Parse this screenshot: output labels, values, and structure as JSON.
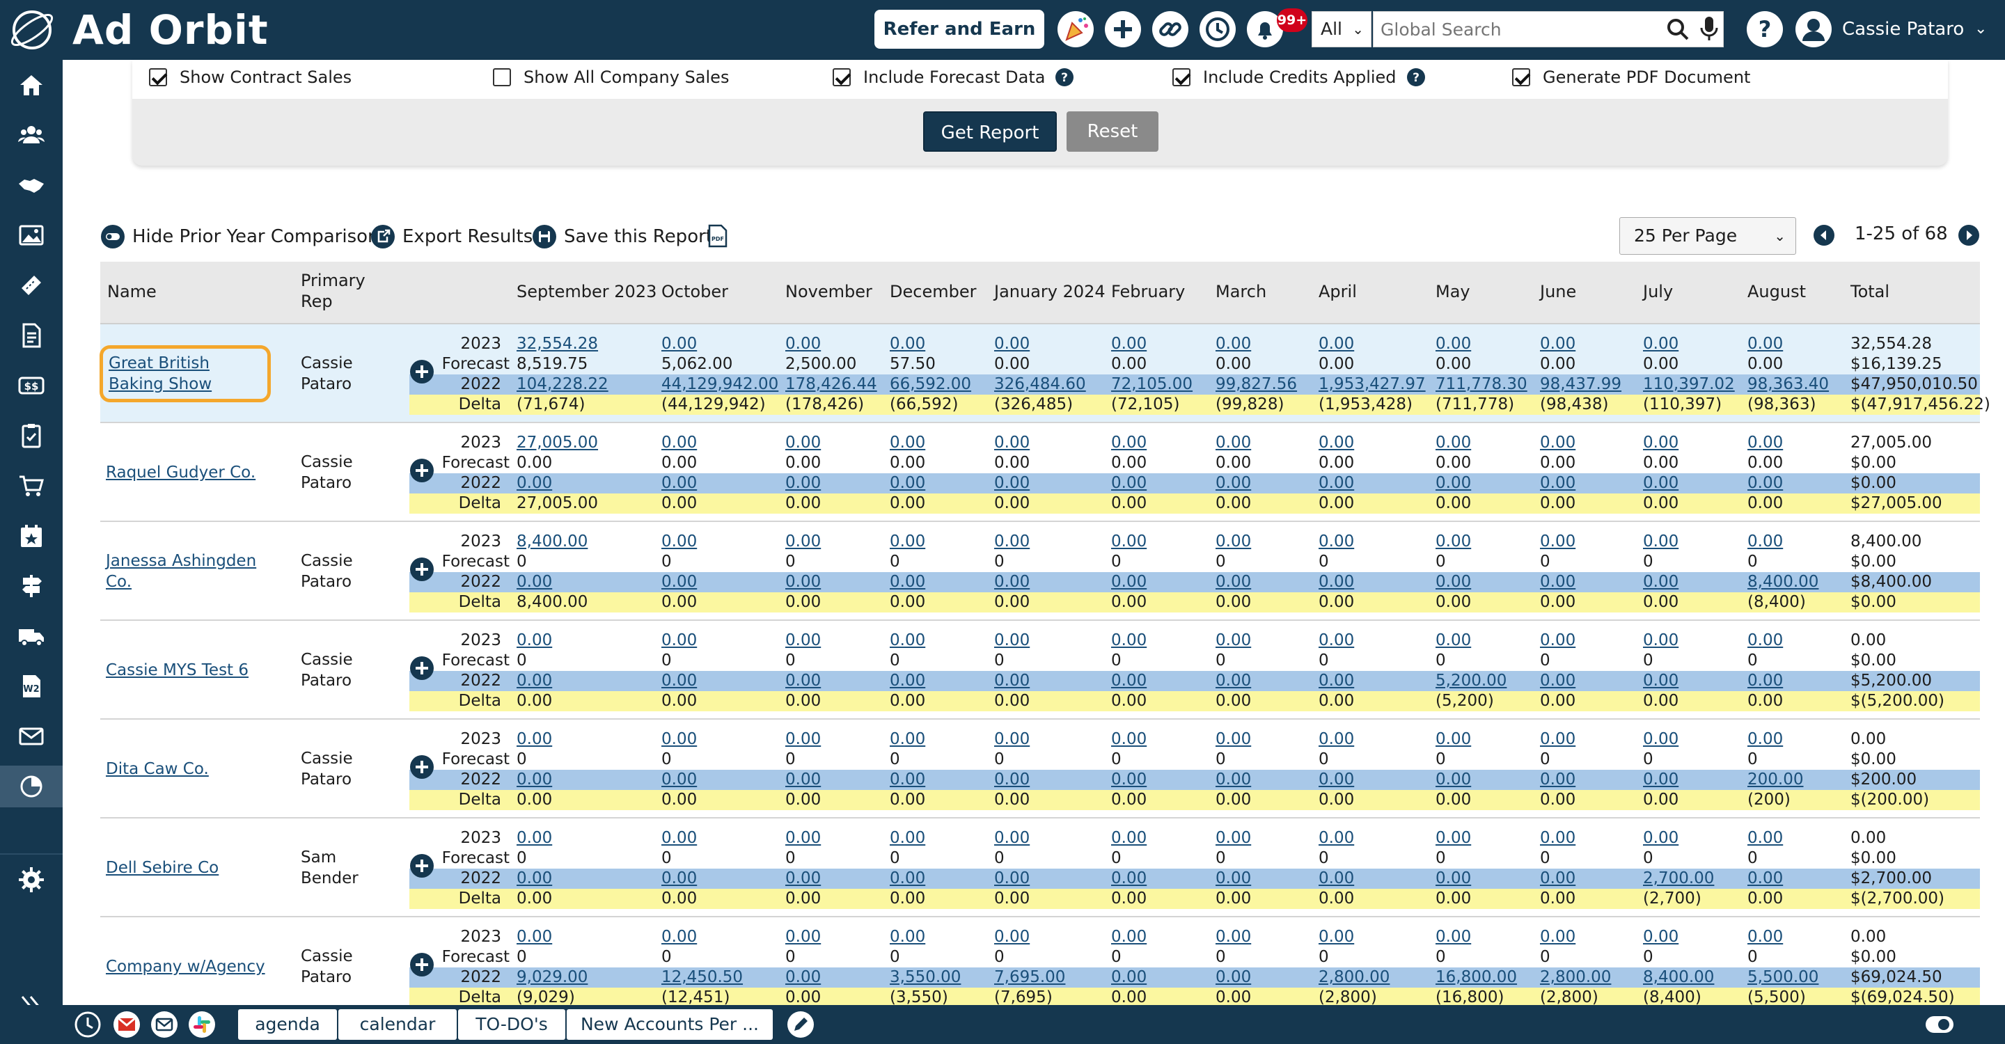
{
  "app": {
    "brand": "Ad Orbit",
    "refer_label": "Refer and Earn",
    "notif_count": "99+",
    "scope": "All",
    "search_placeholder": "Global Search",
    "user_name": "Cassie Pataro"
  },
  "options": {
    "items": [
      {
        "label": "Show Contract Sales",
        "checked": true,
        "help": false
      },
      {
        "label": "Show All Company Sales",
        "checked": false,
        "help": false
      },
      {
        "label": "Include Forecast Data",
        "checked": true,
        "help": true
      },
      {
        "label": "Include Credits Applied",
        "checked": true,
        "help": true
      },
      {
        "label": "Generate PDF Document",
        "checked": true,
        "help": false
      }
    ],
    "get_report": "Get Report",
    "reset": "Reset"
  },
  "actions": {
    "hide_prior": "Hide Prior Year Comparison",
    "export": "Export Results",
    "save": "Save this Report",
    "per_page": "25 Per Page",
    "page_info": "1-25 of 68"
  },
  "table": {
    "headers": {
      "name": "Name",
      "rep_line1": "Primary",
      "rep_line2": "Rep",
      "months": [
        "September 2023",
        "October",
        "November",
        "December",
        "January 2024",
        "February",
        "March",
        "April",
        "May",
        "June",
        "July",
        "August"
      ],
      "total": "Total"
    },
    "row_labels": {
      "year_current": "2023",
      "forecast": "Forecast",
      "year_prior": "2022",
      "delta": "Delta"
    },
    "rows": [
      {
        "name": "Great British Baking Show",
        "rep": "Cassie Pataro",
        "selected": true,
        "r2023": [
          "32,554.28",
          "0.00",
          "0.00",
          "0.00",
          "0.00",
          "0.00",
          "0.00",
          "0.00",
          "0.00",
          "0.00",
          "0.00",
          "0.00"
        ],
        "forecast": [
          "8,519.75",
          "5,062.00",
          "2,500.00",
          "57.50",
          "0.00",
          "0.00",
          "0.00",
          "0.00",
          "0.00",
          "0.00",
          "0.00",
          "0.00"
        ],
        "r2022": [
          "104,228.22",
          "44,129,942.00",
          "178,426.44",
          "66,592.00",
          "326,484.60",
          "72,105.00",
          "99,827.56",
          "1,953,427.97",
          "711,778.30",
          "98,437.99",
          "110,397.02",
          "98,363.40"
        ],
        "delta": [
          "(71,674)",
          "(44,129,942)",
          "(178,426)",
          "(66,592)",
          "(326,485)",
          "(72,105)",
          "(99,828)",
          "(1,953,428)",
          "(711,778)",
          "(98,438)",
          "(110,397)",
          "(98,363)"
        ],
        "totals": [
          "32,554.28",
          "$16,139.25",
          "$47,950,010.50",
          "$(47,917,456.22)"
        ]
      },
      {
        "name": "Raquel Gudyer Co.",
        "rep": "Cassie Pataro",
        "selected": false,
        "r2023": [
          "27,005.00",
          "0.00",
          "0.00",
          "0.00",
          "0.00",
          "0.00",
          "0.00",
          "0.00",
          "0.00",
          "0.00",
          "0.00",
          "0.00"
        ],
        "forecast": [
          "0.00",
          "0.00",
          "0.00",
          "0.00",
          "0.00",
          "0.00",
          "0.00",
          "0.00",
          "0.00",
          "0.00",
          "0.00",
          "0.00"
        ],
        "r2022": [
          "0.00",
          "0.00",
          "0.00",
          "0.00",
          "0.00",
          "0.00",
          "0.00",
          "0.00",
          "0.00",
          "0.00",
          "0.00",
          "0.00"
        ],
        "delta": [
          "27,005.00",
          "0.00",
          "0.00",
          "0.00",
          "0.00",
          "0.00",
          "0.00",
          "0.00",
          "0.00",
          "0.00",
          "0.00",
          "0.00"
        ],
        "totals": [
          "27,005.00",
          "$0.00",
          "$0.00",
          "$27,005.00"
        ]
      },
      {
        "name": "Janessa Ashingden Co.",
        "rep": "Cassie Pataro",
        "selected": false,
        "r2023": [
          "8,400.00",
          "0.00",
          "0.00",
          "0.00",
          "0.00",
          "0.00",
          "0.00",
          "0.00",
          "0.00",
          "0.00",
          "0.00",
          "0.00"
        ],
        "forecast": [
          "0",
          "0",
          "0",
          "0",
          "0",
          "0",
          "0",
          "0",
          "0",
          "0",
          "0",
          "0"
        ],
        "r2022": [
          "0.00",
          "0.00",
          "0.00",
          "0.00",
          "0.00",
          "0.00",
          "0.00",
          "0.00",
          "0.00",
          "0.00",
          "0.00",
          "8,400.00"
        ],
        "delta": [
          "8,400.00",
          "0.00",
          "0.00",
          "0.00",
          "0.00",
          "0.00",
          "0.00",
          "0.00",
          "0.00",
          "0.00",
          "0.00",
          "(8,400)"
        ],
        "totals": [
          "8,400.00",
          "$0.00",
          "$8,400.00",
          "$0.00"
        ]
      },
      {
        "name": "Cassie MYS Test 6",
        "rep": "Cassie Pataro",
        "selected": false,
        "r2023": [
          "0.00",
          "0.00",
          "0.00",
          "0.00",
          "0.00",
          "0.00",
          "0.00",
          "0.00",
          "0.00",
          "0.00",
          "0.00",
          "0.00"
        ],
        "forecast": [
          "0",
          "0",
          "0",
          "0",
          "0",
          "0",
          "0",
          "0",
          "0",
          "0",
          "0",
          "0"
        ],
        "r2022": [
          "0.00",
          "0.00",
          "0.00",
          "0.00",
          "0.00",
          "0.00",
          "0.00",
          "0.00",
          "5,200.00",
          "0.00",
          "0.00",
          "0.00"
        ],
        "delta": [
          "0.00",
          "0.00",
          "0.00",
          "0.00",
          "0.00",
          "0.00",
          "0.00",
          "0.00",
          "(5,200)",
          "0.00",
          "0.00",
          "0.00"
        ],
        "totals": [
          "0.00",
          "$0.00",
          "$5,200.00",
          "$(5,200.00)"
        ]
      },
      {
        "name": "Dita Caw Co.",
        "rep": "Cassie Pataro",
        "selected": false,
        "r2023": [
          "0.00",
          "0.00",
          "0.00",
          "0.00",
          "0.00",
          "0.00",
          "0.00",
          "0.00",
          "0.00",
          "0.00",
          "0.00",
          "0.00"
        ],
        "forecast": [
          "0",
          "0",
          "0",
          "0",
          "0",
          "0",
          "0",
          "0",
          "0",
          "0",
          "0",
          "0"
        ],
        "r2022": [
          "0.00",
          "0.00",
          "0.00",
          "0.00",
          "0.00",
          "0.00",
          "0.00",
          "0.00",
          "0.00",
          "0.00",
          "0.00",
          "200.00"
        ],
        "delta": [
          "0.00",
          "0.00",
          "0.00",
          "0.00",
          "0.00",
          "0.00",
          "0.00",
          "0.00",
          "0.00",
          "0.00",
          "0.00",
          "(200)"
        ],
        "totals": [
          "0.00",
          "$0.00",
          "$200.00",
          "$(200.00)"
        ]
      },
      {
        "name": "Dell Sebire Co",
        "rep": "Sam Bender",
        "selected": false,
        "r2023": [
          "0.00",
          "0.00",
          "0.00",
          "0.00",
          "0.00",
          "0.00",
          "0.00",
          "0.00",
          "0.00",
          "0.00",
          "0.00",
          "0.00"
        ],
        "forecast": [
          "0",
          "0",
          "0",
          "0",
          "0",
          "0",
          "0",
          "0",
          "0",
          "0",
          "0",
          "0"
        ],
        "r2022": [
          "0.00",
          "0.00",
          "0.00",
          "0.00",
          "0.00",
          "0.00",
          "0.00",
          "0.00",
          "0.00",
          "0.00",
          "2,700.00",
          "0.00"
        ],
        "delta": [
          "0.00",
          "0.00",
          "0.00",
          "0.00",
          "0.00",
          "0.00",
          "0.00",
          "0.00",
          "0.00",
          "0.00",
          "(2,700)",
          "0.00"
        ],
        "totals": [
          "0.00",
          "$0.00",
          "$2,700.00",
          "$(2,700.00)"
        ]
      },
      {
        "name": "Company w/Agency",
        "rep": "Cassie Pataro",
        "selected": false,
        "r2023": [
          "0.00",
          "0.00",
          "0.00",
          "0.00",
          "0.00",
          "0.00",
          "0.00",
          "0.00",
          "0.00",
          "0.00",
          "0.00",
          "0.00"
        ],
        "forecast": [
          "0",
          "0",
          "0",
          "0",
          "0",
          "0",
          "0",
          "0",
          "0",
          "0",
          "0",
          "0"
        ],
        "r2022": [
          "9,029.00",
          "12,450.50",
          "0.00",
          "3,550.00",
          "7,695.00",
          "0.00",
          "0.00",
          "2,800.00",
          "16,800.00",
          "2,800.00",
          "8,400.00",
          "5,500.00"
        ],
        "delta": [
          "(9,029)",
          "(12,451)",
          "0.00",
          "(3,550)",
          "(7,695)",
          "0.00",
          "0.00",
          "(2,800)",
          "(16,800)",
          "(2,800)",
          "(8,400)",
          "(5,500)"
        ],
        "totals": [
          "0.00",
          "$0.00",
          "$69,024.50",
          "$(69,024.50)"
        ]
      }
    ]
  },
  "bottom": {
    "tabs": [
      "agenda",
      "calendar",
      "TO-DO's",
      "New Accounts Per ..."
    ]
  }
}
